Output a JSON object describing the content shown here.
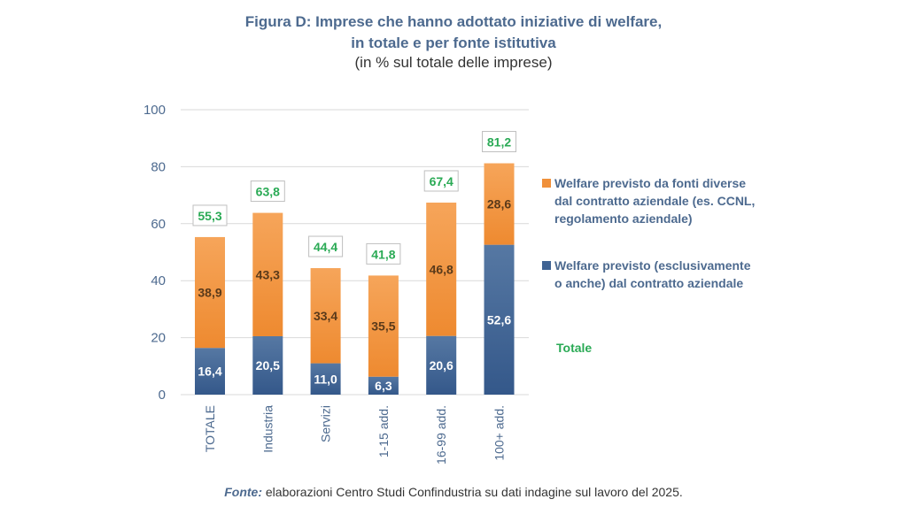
{
  "header": {
    "title_line1": "Figura D: Imprese che hanno adottato iniziative di welfare,",
    "title_line2": "in totale e per fonte istitutiva",
    "subtitle": "(in % sul totale delle imprese)"
  },
  "chart_data": {
    "type": "bar",
    "stacked": true,
    "title": "Figura D: Imprese che hanno adottato iniziative di welfare, in totale e per fonte istitutiva",
    "subtitle": "(in % sul totale delle imprese)",
    "xlabel": "",
    "ylabel": "",
    "ylim": [
      0,
      100
    ],
    "yticks": [
      0,
      20,
      40,
      60,
      80,
      100
    ],
    "grid": true,
    "categories": [
      "TOTALE",
      "Industria",
      "Servizi",
      "1-15 add.",
      "16-99 add.",
      "100+ add."
    ],
    "series": [
      {
        "name": "Welfare previsto (esclusivamente o anche) dal contratto aziendale",
        "color": "#3f6393",
        "values": [
          16.4,
          20.5,
          11.0,
          6.3,
          20.6,
          52.6
        ],
        "labels": [
          "16,4",
          "20,5",
          "11,0",
          "6,3",
          "20,6",
          "52,6"
        ]
      },
      {
        "name": "Welfare previsto da fonti diverse dal contratto aziendale (es. CCNL, regolamento aziendale)",
        "color": "#f0903a",
        "values": [
          38.9,
          43.3,
          33.4,
          35.5,
          46.8,
          28.6
        ],
        "labels": [
          "38,9",
          "43,3",
          "33,4",
          "35,5",
          "46,8",
          "28,6"
        ]
      }
    ],
    "totals": {
      "name": "Totale",
      "color": "#2aaa55",
      "values": [
        55.3,
        63.8,
        44.4,
        41.8,
        67.4,
        81.2
      ],
      "labels": [
        "55,3",
        "63,8",
        "44,4",
        "41,8",
        "67,4",
        "81,2"
      ]
    },
    "legend_position": "right"
  },
  "legend": {
    "items": [
      {
        "label_lines": [
          "Welfare previsto da fonti diverse",
          "dal contratto aziendale (es. CCNL,",
          "regolamento aziendale)"
        ],
        "color": "#f0903a"
      },
      {
        "label_lines": [
          "Welfare previsto (esclusivamente",
          "o anche) dal contratto aziendale"
        ],
        "color": "#3f6393"
      }
    ],
    "total_label": "Totale"
  },
  "source": {
    "prefix": "Fonte:",
    "text": " elaborazioni Centro Studi Confindustria su dati indagine sul lavoro del 2025."
  }
}
